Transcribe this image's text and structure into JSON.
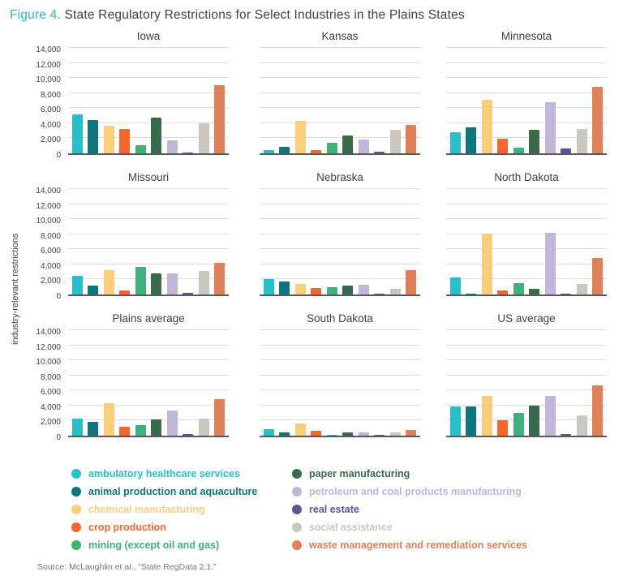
{
  "figure": {
    "label": "Figure 4.",
    "title": " State Regulatory Restrictions for Select Industries in the Plains States",
    "ylabel": "industry-relevant restrictions",
    "source": "Source: McLaughlin et al., “State RegData 2.1.”"
  },
  "colors": {
    "accent_teal": "#2CB9C3",
    "text_dark": "#414042",
    "gridline": "#dddddd",
    "axis_baseline": "#58595b",
    "source_gray": "#77787b"
  },
  "industries": [
    {
      "name": "ambulatory healthcare services",
      "color": "#27C0CA"
    },
    {
      "name": "animal production and aquaculture",
      "color": "#0E757C"
    },
    {
      "name": "chemical manufacturing",
      "color": "#F9CF7B"
    },
    {
      "name": "crop production",
      "color": "#F4662C"
    },
    {
      "name": "mining (except oil and gas)",
      "color": "#41B17B"
    },
    {
      "name": "paper manufacturing",
      "color": "#3A6A4D"
    },
    {
      "name": "petroleum and coal products manufacturing",
      "color": "#C0B7D8"
    },
    {
      "name": "real estate",
      "color": "#5F5596"
    },
    {
      "name": "social assistance",
      "color": "#CBC7BE"
    },
    {
      "name": "waste management and remediation services",
      "color": "#DE8158"
    }
  ],
  "chart_data": {
    "type": "bar",
    "categories": [
      "ambulatory healthcare services",
      "animal production and aquaculture",
      "chemical manufacturing",
      "crop production",
      "mining (except oil and gas)",
      "paper manufacturing",
      "petroleum and coal products manufacturing",
      "real estate",
      "social assistance",
      "waste management and remediation services"
    ],
    "ylabel": "industry-relevant restrictions",
    "ylim": [
      0,
      14000
    ],
    "yticks": [
      0,
      2000,
      4000,
      6000,
      8000,
      10000,
      12000,
      14000
    ],
    "grid": true,
    "legend_position": "bottom",
    "charts": [
      {
        "title": "Iowa",
        "values": [
          5200,
          4400,
          3700,
          3200,
          1100,
          4700,
          1700,
          100,
          4000,
          9000
        ]
      },
      {
        "title": "Kansas",
        "values": [
          400,
          900,
          4300,
          400,
          1400,
          2400,
          1800,
          200,
          3100,
          3800
        ]
      },
      {
        "title": "Minnesota",
        "values": [
          2800,
          3500,
          7100,
          1900,
          800,
          3100,
          6800,
          600,
          3200,
          8800
        ]
      },
      {
        "title": "Missouri",
        "values": [
          2500,
          1200,
          3200,
          500,
          3700,
          2800,
          2800,
          200,
          3100,
          4200
        ]
      },
      {
        "title": "Nebraska",
        "values": [
          2100,
          1700,
          1400,
          900,
          1000,
          1200,
          1300,
          150,
          800,
          3200
        ]
      },
      {
        "title": "North Dakota",
        "values": [
          2300,
          100,
          8100,
          500,
          1500,
          800,
          8200,
          50,
          1400,
          4800
        ]
      },
      {
        "title": "Plains average",
        "values": [
          2300,
          1800,
          4300,
          1200,
          1400,
          2200,
          3300,
          200,
          2300,
          4900
        ]
      },
      {
        "title": "South Dakota",
        "values": [
          900,
          400,
          1600,
          600,
          150,
          400,
          400,
          100,
          400,
          800
        ]
      },
      {
        "title": "US average",
        "values": [
          3900,
          3900,
          5300,
          2000,
          3000,
          4000,
          5300,
          200,
          2700,
          6700
        ]
      }
    ]
  }
}
